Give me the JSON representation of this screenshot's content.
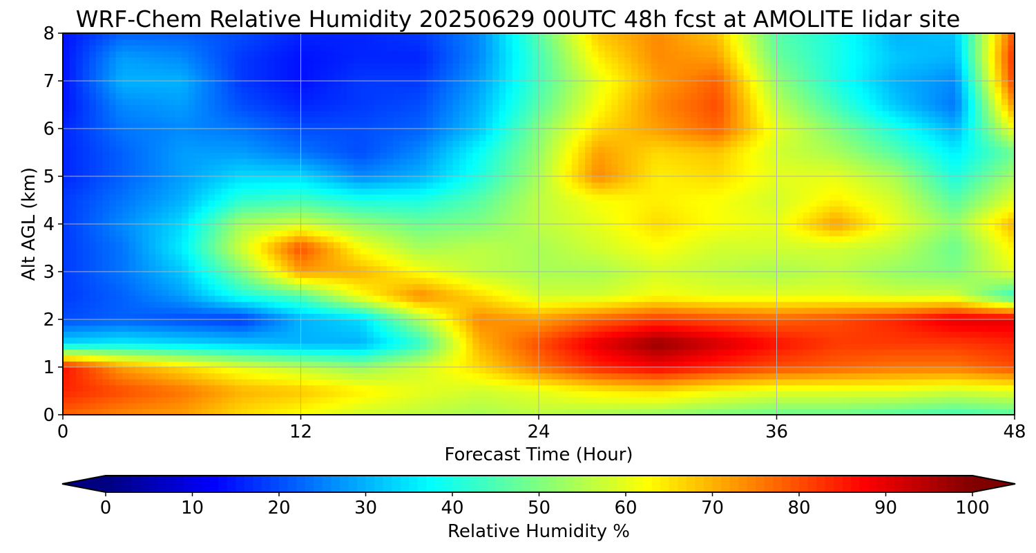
{
  "chart_data": {
    "type": "heatmap",
    "title": "WRF-Chem Relative Humidity 20250629 00UTC 48h fcst at AMOLITE lidar site",
    "xlabel": "Forecast Time (Hour)",
    "ylabel": "Alt AGL (km)",
    "xlim": [
      0,
      48
    ],
    "ylim": [
      0,
      8
    ],
    "x_ticks": [
      0,
      12,
      24,
      36,
      48
    ],
    "y_ticks": [
      0,
      1,
      2,
      3,
      4,
      5,
      6,
      7,
      8
    ],
    "grid": true,
    "colorbar": {
      "label": "Relative Humidity %",
      "ticks": [
        0,
        10,
        20,
        30,
        40,
        50,
        60,
        70,
        80,
        90,
        100
      ],
      "range": [
        0,
        100
      ],
      "colormap": "jet",
      "extend": "both",
      "orientation": "horizontal"
    },
    "x": [
      0,
      3,
      6,
      9,
      12,
      15,
      18,
      21,
      24,
      27,
      30,
      33,
      36,
      39,
      42,
      45,
      48
    ],
    "y": [
      0,
      0.5,
      1,
      1.5,
      2,
      2.5,
      3,
      3.5,
      4,
      4.5,
      5,
      5.5,
      6,
      6.5,
      7,
      7.5,
      8
    ],
    "z": [
      [
        78,
        74,
        72,
        66,
        62,
        58,
        56,
        54,
        56,
        54,
        52,
        50,
        48,
        48,
        46,
        44,
        46
      ],
      [
        84,
        80,
        76,
        70,
        68,
        64,
        60,
        58,
        60,
        64,
        66,
        62,
        60,
        60,
        60,
        58,
        60
      ],
      [
        86,
        72,
        66,
        60,
        56,
        52,
        58,
        66,
        76,
        84,
        88,
        84,
        80,
        78,
        76,
        76,
        80
      ],
      [
        34,
        36,
        34,
        32,
        30,
        30,
        42,
        70,
        80,
        90,
        98,
        92,
        86,
        82,
        82,
        82,
        84
      ],
      [
        20,
        22,
        20,
        18,
        30,
        34,
        54,
        74,
        72,
        78,
        82,
        80,
        78,
        80,
        84,
        90,
        90
      ],
      [
        18,
        22,
        28,
        40,
        46,
        62,
        74,
        66,
        58,
        58,
        62,
        60,
        60,
        60,
        58,
        58,
        42
      ],
      [
        18,
        24,
        32,
        50,
        72,
        70,
        62,
        56,
        54,
        54,
        58,
        56,
        54,
        56,
        52,
        50,
        60
      ],
      [
        18,
        24,
        36,
        58,
        80,
        62,
        54,
        56,
        54,
        58,
        62,
        58,
        58,
        58,
        56,
        48,
        64
      ],
      [
        18,
        26,
        34,
        54,
        58,
        52,
        48,
        50,
        56,
        60,
        66,
        62,
        60,
        72,
        60,
        52,
        70
      ],
      [
        18,
        24,
        30,
        42,
        44,
        40,
        40,
        46,
        56,
        62,
        64,
        62,
        58,
        64,
        58,
        46,
        60
      ],
      [
        16,
        22,
        28,
        34,
        34,
        26,
        30,
        40,
        54,
        74,
        64,
        66,
        60,
        60,
        54,
        40,
        54
      ],
      [
        16,
        22,
        28,
        28,
        24,
        20,
        26,
        38,
        52,
        72,
        66,
        68,
        58,
        54,
        46,
        36,
        48
      ],
      [
        16,
        24,
        26,
        24,
        20,
        20,
        22,
        32,
        50,
        66,
        72,
        78,
        60,
        50,
        40,
        30,
        62
      ],
      [
        14,
        26,
        28,
        20,
        16,
        18,
        20,
        30,
        46,
        62,
        74,
        80,
        56,
        44,
        32,
        24,
        74
      ],
      [
        14,
        30,
        30,
        18,
        14,
        18,
        18,
        28,
        44,
        60,
        72,
        78,
        52,
        40,
        30,
        26,
        82
      ],
      [
        14,
        28,
        26,
        18,
        14,
        16,
        16,
        26,
        44,
        64,
        74,
        72,
        48,
        40,
        32,
        30,
        84
      ],
      [
        14,
        22,
        22,
        20,
        16,
        16,
        18,
        26,
        46,
        68,
        74,
        68,
        46,
        40,
        30,
        32,
        80
      ]
    ]
  }
}
